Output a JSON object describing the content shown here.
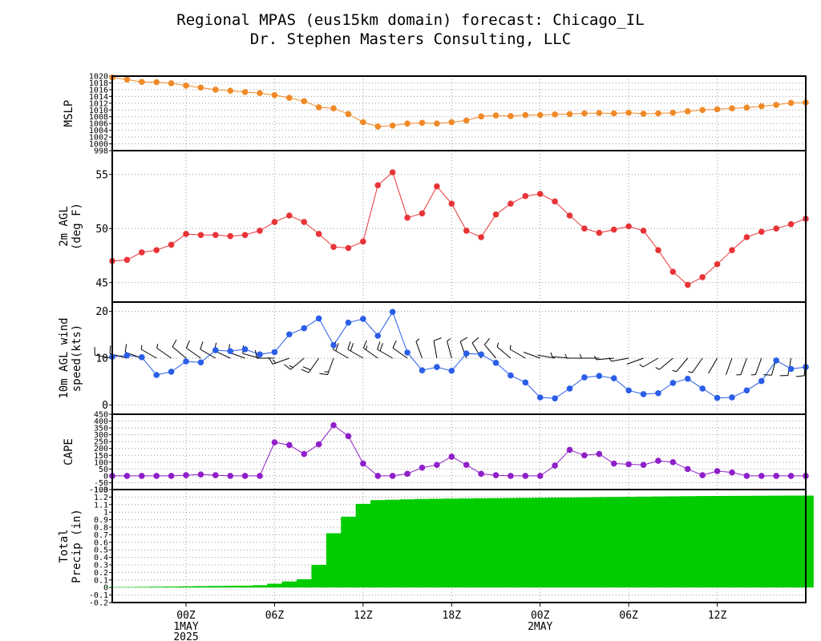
{
  "title": "Regional MPAS (eus15km domain) forecast: Chicago_IL",
  "subtitle": "Dr. Stephen Masters Consulting, LLC",
  "x_axis": {
    "ticks": [
      {
        "i": 5,
        "label": "00Z",
        "sub": "1MAY",
        "sub2": "2025"
      },
      {
        "i": 11,
        "label": "06Z"
      },
      {
        "i": 17,
        "label": "12Z"
      },
      {
        "i": 23,
        "label": "18Z"
      },
      {
        "i": 29,
        "label": "00Z",
        "sub": "2MAY"
      },
      {
        "i": 35,
        "label": "06Z"
      },
      {
        "i": 41,
        "label": "12Z"
      }
    ]
  },
  "chart_data": [
    {
      "type": "line",
      "ylabel": [
        "MSLP"
      ],
      "ylim": [
        998,
        1020
      ],
      "yticks": [
        998,
        1000,
        1002,
        1004,
        1006,
        1008,
        1010,
        1012,
        1014,
        1016,
        1018,
        1020
      ],
      "color": "#f08a28",
      "grid": true,
      "values": [
        1019.6,
        1019.0,
        1018.3,
        1018.2,
        1017.9,
        1017.2,
        1016.6,
        1016.0,
        1015.7,
        1015.3,
        1015.0,
        1014.4,
        1013.6,
        1012.6,
        1010.8,
        1010.5,
        1008.8,
        1006.4,
        1005.1,
        1005.4,
        1006.0,
        1006.2,
        1006.0,
        1006.4,
        1006.9,
        1008.1,
        1008.4,
        1008.2,
        1008.5,
        1008.5,
        1008.7,
        1008.8,
        1009.0,
        1009.1,
        1009.0,
        1009.2,
        1008.9,
        1009.0,
        1009.2,
        1009.6,
        1010.0,
        1010.2,
        1010.5,
        1010.7,
        1011.1,
        1011.5,
        1012.1,
        1012.2
      ]
    },
    {
      "type": "line",
      "ylabel": [
        "2m AGL",
        "(deg F)"
      ],
      "ylim": [
        43.2,
        57.2
      ],
      "yticks": [
        45,
        50,
        55
      ],
      "color": "#e83438",
      "grid": true,
      "values": [
        47.0,
        47.1,
        47.8,
        48.0,
        48.5,
        49.5,
        49.4,
        49.4,
        49.3,
        49.4,
        49.8,
        50.6,
        51.2,
        50.6,
        49.5,
        48.3,
        48.2,
        48.8,
        54.0,
        55.2,
        51.0,
        51.4,
        53.9,
        52.3,
        49.8,
        49.2,
        51.3,
        52.3,
        53.0,
        53.2,
        52.5,
        51.2,
        50.0,
        49.6,
        49.9,
        50.2,
        49.8,
        48.0,
        46.0,
        44.8,
        45.5,
        46.7,
        48.0,
        49.2,
        49.7,
        50.0,
        50.4,
        50.9
      ]
    },
    {
      "type": "line",
      "ylabel": [
        "10m AGL wind",
        "speed(kts)"
      ],
      "ylim": [
        -2,
        22
      ],
      "yticks": [
        0,
        10,
        20
      ],
      "color": "#2a5ee8",
      "grid": true,
      "values": [
        10.3,
        10.6,
        10.2,
        6.4,
        7.1,
        9.3,
        9.1,
        11.7,
        11.5,
        11.9,
        10.8,
        11.3,
        15.1,
        16.4,
        18.5,
        12.8,
        17.6,
        18.4,
        14.8,
        19.9,
        11.2,
        7.4,
        8.1,
        7.3,
        11.0,
        10.8,
        9.0,
        6.3,
        4.8,
        1.6,
        1.4,
        3.5,
        5.9,
        6.2,
        5.7,
        3.1,
        2.3,
        2.5,
        4.7,
        5.6,
        3.5,
        1.5,
        1.6,
        3.1,
        5.1,
        9.5,
        7.7,
        8.1
      ],
      "wind_barb_dirs_deg": [
        280,
        285,
        290,
        300,
        305,
        310,
        305,
        300,
        295,
        290,
        285,
        270,
        250,
        230,
        215,
        200,
        300,
        300,
        305,
        300,
        305,
        340,
        350,
        345,
        340,
        330,
        320,
        310,
        300,
        290,
        280,
        275,
        270,
        270,
        265,
        260,
        250,
        240,
        230,
        220,
        215,
        210,
        200,
        200,
        200,
        195,
        190,
        185
      ]
    },
    {
      "type": "line",
      "ylabel": [
        "CAPE"
      ],
      "ylim": [
        -100,
        450
      ],
      "yticks": [
        -100,
        -50,
        0,
        50,
        100,
        150,
        200,
        250,
        300,
        350,
        400,
        450
      ],
      "color": "#8f1fc8",
      "grid": true,
      "values": [
        0,
        0,
        0,
        0,
        0,
        5,
        10,
        5,
        0,
        0,
        0,
        245,
        225,
        160,
        230,
        370,
        290,
        90,
        0,
        0,
        15,
        60,
        80,
        140,
        80,
        15,
        5,
        0,
        0,
        0,
        75,
        190,
        150,
        160,
        90,
        85,
        80,
        110,
        100,
        50,
        5,
        35,
        25,
        0,
        0,
        0,
        0,
        0
      ]
    },
    {
      "type": "area",
      "ylabel": [
        "Total",
        "Precip (in)"
      ],
      "ylim": [
        -0.2,
        1.3
      ],
      "yticks": [
        -0.2,
        -0.1,
        0,
        0.1,
        0.2,
        0.3,
        0.4,
        0.5,
        0.6,
        0.7,
        0.8,
        0.9,
        1,
        1.1,
        1.2,
        1.3
      ],
      "color": "#00cc00",
      "grid": true,
      "values": [
        0.005,
        0.006,
        0.008,
        0.01,
        0.012,
        0.015,
        0.018,
        0.02,
        0.022,
        0.024,
        0.03,
        0.05,
        0.08,
        0.11,
        0.3,
        0.72,
        0.94,
        1.11,
        1.16,
        1.165,
        1.17,
        1.175,
        1.178,
        1.18,
        1.182,
        1.184,
        1.186,
        1.188,
        1.19,
        1.192,
        1.194,
        1.196,
        1.198,
        1.2,
        1.202,
        1.204,
        1.206,
        1.208,
        1.21,
        1.212,
        1.214,
        1.215,
        1.216,
        1.217,
        1.218,
        1.219,
        1.22,
        1.22
      ]
    }
  ]
}
